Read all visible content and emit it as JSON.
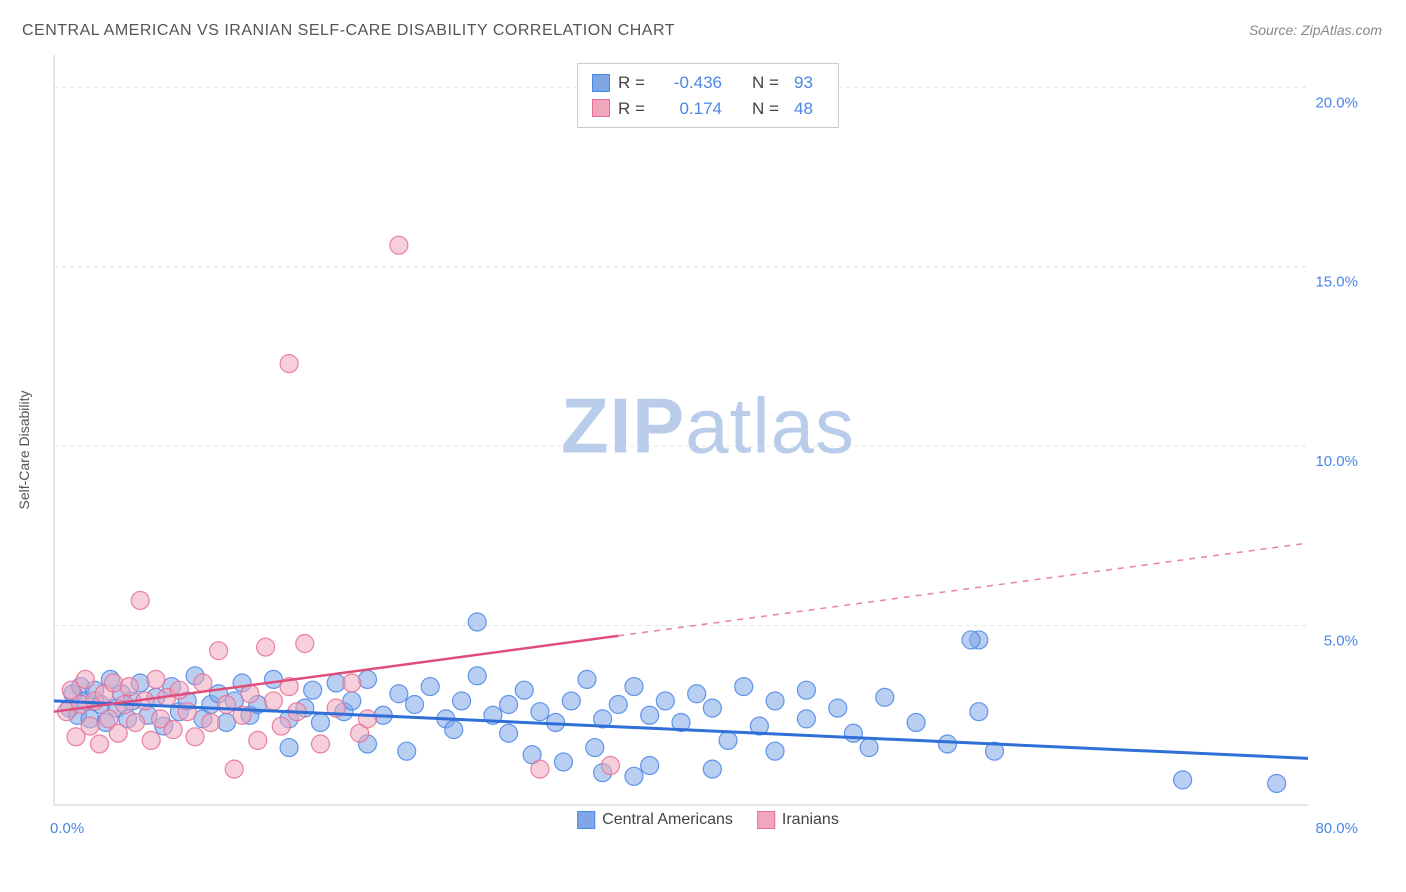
{
  "title": "CENTRAL AMERICAN VS IRANIAN SELF-CARE DISABILITY CORRELATION CHART",
  "source_label": "Source: ",
  "source_value": "ZipAtlas.com",
  "ylabel": "Self-Care Disability",
  "watermark_a": "ZIP",
  "watermark_b": "atlas",
  "chart": {
    "type": "scatter",
    "xlim": [
      0,
      80
    ],
    "ylim": [
      0,
      20.9
    ],
    "xtick_labels": [
      "0.0%",
      "80.0%"
    ],
    "xtick_positions_pct": [
      0,
      100
    ],
    "ytick_labels": [
      "5.0%",
      "10.0%",
      "15.0%",
      "20.0%"
    ],
    "ytick_positions": [
      5,
      10,
      15,
      20
    ],
    "grid_color": "#e3e3e3",
    "axis_color": "#cccccc",
    "marker_radius": 9,
    "marker_opacity": 0.55,
    "background_color": "#ffffff",
    "tick_label_color": "#4a86e8",
    "series": [
      {
        "key": "central_americans",
        "label": "Central Americans",
        "color_fill": "#7fa7e6",
        "color_stroke": "#4a86e8",
        "trend_color": "#2f6fd8",
        "trend_dashed": false,
        "r_label": "R =",
        "r_value": "-0.436",
        "n_label": "N =",
        "n_value": "93",
        "trend": {
          "x1": 0,
          "y1": 2.9,
          "x2": 80,
          "y2": 1.3
        },
        "points": [
          [
            1,
            2.7
          ],
          [
            1.2,
            3.1
          ],
          [
            1.5,
            2.5
          ],
          [
            1.7,
            3.3
          ],
          [
            2,
            2.9
          ],
          [
            2.3,
            2.4
          ],
          [
            2.6,
            3.2
          ],
          [
            3,
            2.8
          ],
          [
            3.3,
            2.3
          ],
          [
            3.6,
            3.5
          ],
          [
            4,
            2.7
          ],
          [
            4.3,
            3.1
          ],
          [
            4.7,
            2.4
          ],
          [
            5,
            2.9
          ],
          [
            5.5,
            3.4
          ],
          [
            6,
            2.5
          ],
          [
            6.5,
            3.0
          ],
          [
            7,
            2.2
          ],
          [
            7.5,
            3.3
          ],
          [
            8,
            2.6
          ],
          [
            8.5,
            2.9
          ],
          [
            9,
            3.6
          ],
          [
            9.5,
            2.4
          ],
          [
            10,
            2.8
          ],
          [
            10.5,
            3.1
          ],
          [
            11,
            2.3
          ],
          [
            11.5,
            2.9
          ],
          [
            12,
            3.4
          ],
          [
            12.5,
            2.5
          ],
          [
            13,
            2.8
          ],
          [
            14,
            3.5
          ],
          [
            15,
            2.4
          ],
          [
            15,
            1.6
          ],
          [
            16,
            2.7
          ],
          [
            16.5,
            3.2
          ],
          [
            17,
            2.3
          ],
          [
            18,
            3.4
          ],
          [
            18.5,
            2.6
          ],
          [
            19,
            2.9
          ],
          [
            20,
            1.7
          ],
          [
            20,
            3.5
          ],
          [
            21,
            2.5
          ],
          [
            22,
            3.1
          ],
          [
            22.5,
            1.5
          ],
          [
            23,
            2.8
          ],
          [
            24,
            3.3
          ],
          [
            25,
            2.4
          ],
          [
            25.5,
            2.1
          ],
          [
            26,
            2.9
          ],
          [
            27,
            3.6
          ],
          [
            27,
            5.1
          ],
          [
            28,
            2.5
          ],
          [
            29,
            2.0
          ],
          [
            29,
            2.8
          ],
          [
            30,
            3.2
          ],
          [
            30.5,
            1.4
          ],
          [
            31,
            2.6
          ],
          [
            32,
            2.3
          ],
          [
            32.5,
            1.2
          ],
          [
            33,
            2.9
          ],
          [
            34,
            3.5
          ],
          [
            34.5,
            1.6
          ],
          [
            35,
            2.4
          ],
          [
            35,
            0.9
          ],
          [
            36,
            2.8
          ],
          [
            37,
            3.3
          ],
          [
            37,
            0.8
          ],
          [
            38,
            2.5
          ],
          [
            38,
            1.1
          ],
          [
            39,
            2.9
          ],
          [
            40,
            2.3
          ],
          [
            41,
            3.1
          ],
          [
            42,
            2.7
          ],
          [
            42,
            1.0
          ],
          [
            43,
            1.8
          ],
          [
            44,
            3.3
          ],
          [
            45,
            2.2
          ],
          [
            46,
            1.5
          ],
          [
            46,
            2.9
          ],
          [
            48,
            2.4
          ],
          [
            48,
            3.2
          ],
          [
            50,
            2.7
          ],
          [
            51,
            2.0
          ],
          [
            52,
            1.6
          ],
          [
            53,
            3.0
          ],
          [
            55,
            2.3
          ],
          [
            57,
            1.7
          ],
          [
            59,
            4.6
          ],
          [
            59,
            2.6
          ],
          [
            60,
            1.5
          ],
          [
            72,
            0.7
          ],
          [
            78,
            0.6
          ],
          [
            58.5,
            4.6
          ]
        ]
      },
      {
        "key": "iranians",
        "label": "Iranians",
        "color_fill": "#f1a7bb",
        "color_stroke": "#e86d94",
        "trend_color": "#e04d7b",
        "trend_dashed": false,
        "trend_dash_after_x": 36,
        "r_label": "R =",
        "r_value": "0.174",
        "n_label": "N =",
        "n_value": "48",
        "trend": {
          "x1": 0,
          "y1": 2.6,
          "x2": 80,
          "y2": 7.3
        },
        "points": [
          [
            0.8,
            2.6
          ],
          [
            1.1,
            3.2
          ],
          [
            1.4,
            1.9
          ],
          [
            1.7,
            2.8
          ],
          [
            2,
            3.5
          ],
          [
            2.3,
            2.2
          ],
          [
            2.6,
            2.9
          ],
          [
            2.9,
            1.7
          ],
          [
            3.2,
            3.1
          ],
          [
            3.5,
            2.4
          ],
          [
            3.8,
            3.4
          ],
          [
            4.1,
            2.0
          ],
          [
            4.5,
            2.8
          ],
          [
            4.8,
            3.3
          ],
          [
            5.2,
            2.3
          ],
          [
            5.5,
            5.7
          ],
          [
            5.8,
            2.9
          ],
          [
            6.2,
            1.8
          ],
          [
            6.5,
            3.5
          ],
          [
            6.8,
            2.4
          ],
          [
            7.2,
            3.0
          ],
          [
            7.6,
            2.1
          ],
          [
            8,
            3.2
          ],
          [
            8.5,
            2.6
          ],
          [
            9,
            1.9
          ],
          [
            9.5,
            3.4
          ],
          [
            10,
            2.3
          ],
          [
            10.5,
            4.3
          ],
          [
            11,
            2.8
          ],
          [
            11.5,
            1.0
          ],
          [
            12,
            2.5
          ],
          [
            12.5,
            3.1
          ],
          [
            13,
            1.8
          ],
          [
            13.5,
            4.4
          ],
          [
            14,
            2.9
          ],
          [
            14.5,
            2.2
          ],
          [
            15,
            3.3
          ],
          [
            15.5,
            2.6
          ],
          [
            15,
            12.3
          ],
          [
            16,
            4.5
          ],
          [
            17,
            1.7
          ],
          [
            18,
            2.7
          ],
          [
            19,
            3.4
          ],
          [
            31,
            1.0
          ],
          [
            22,
            15.6
          ],
          [
            35.5,
            1.1
          ],
          [
            19.5,
            2.0
          ],
          [
            20,
            2.4
          ]
        ]
      }
    ]
  }
}
